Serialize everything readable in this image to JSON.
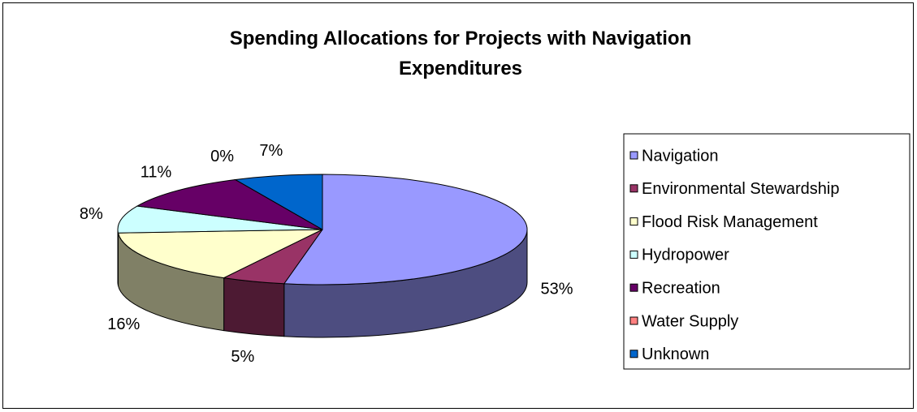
{
  "chart_data": {
    "type": "pie3d",
    "title": "Spending Allocations for Projects with Navigation Expenditures",
    "categories": [
      "Navigation",
      "Environmental Stewardship",
      "Flood Risk Management",
      "Hydropower",
      "Recreation",
      "Water Supply",
      "Unknown"
    ],
    "values": [
      53,
      5,
      16,
      8,
      11,
      0,
      7
    ],
    "value_labels": [
      "53%",
      "5%",
      "16%",
      "8%",
      "11%",
      "0%",
      "7%"
    ],
    "colors": [
      "#9999ff",
      "#993366",
      "#ffffcc",
      "#ccffff",
      "#660066",
      "#ff8080",
      "#0066cc"
    ],
    "legend": "right"
  }
}
